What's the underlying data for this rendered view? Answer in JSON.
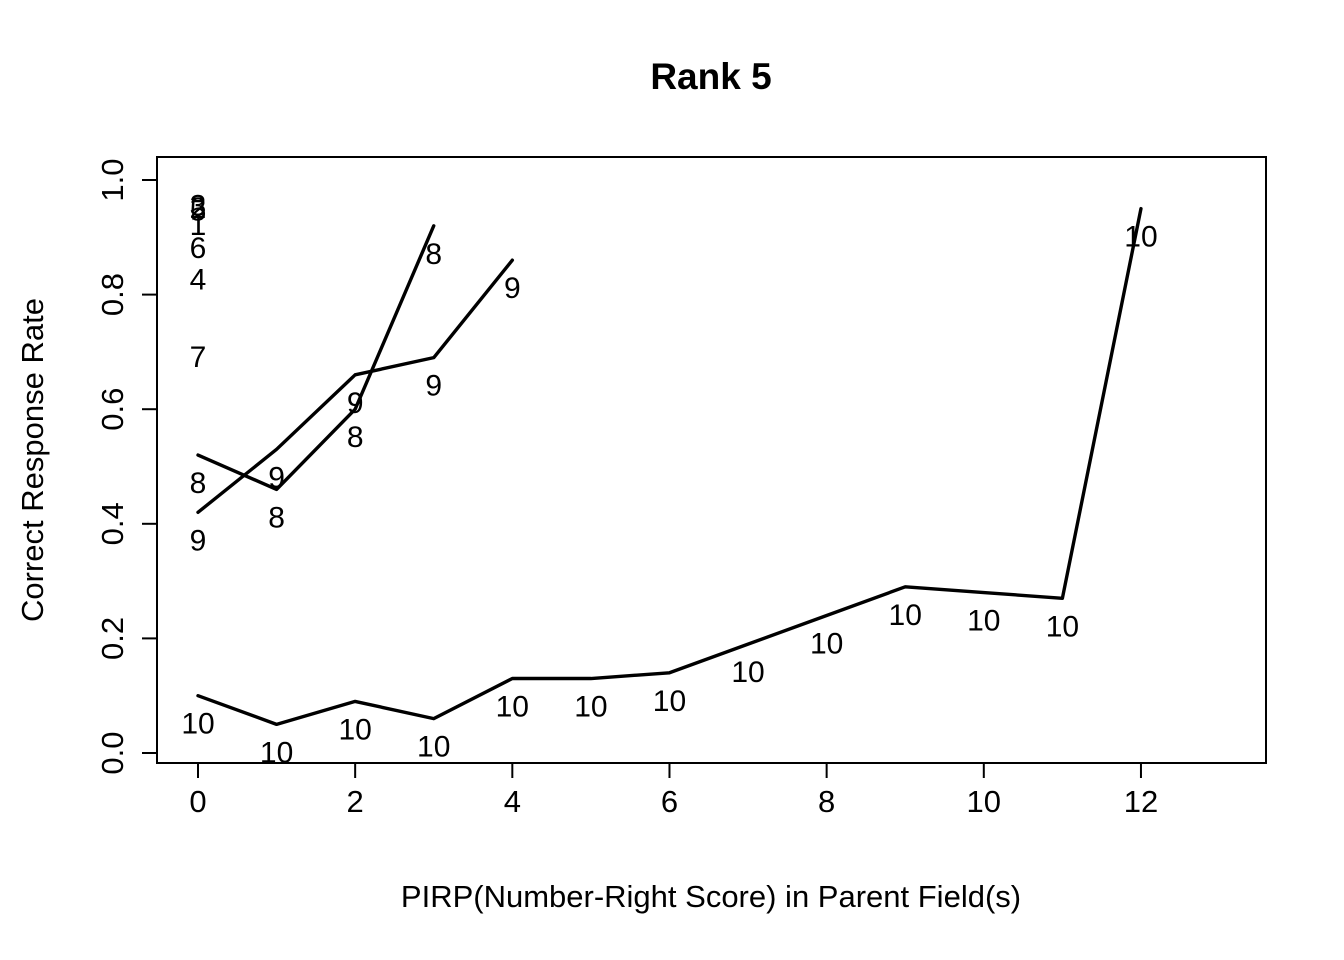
{
  "chart_data": {
    "type": "line",
    "title": "Rank 5",
    "xlabel": "PIRP(Number-Right Score) in Parent Field(s)",
    "ylabel": "Correct Response Rate",
    "xlim": [
      -0.5,
      13.6
    ],
    "ylim": [
      -0.02,
      1.06
    ],
    "x_ticks": [
      0,
      2,
      4,
      6,
      8,
      10,
      12
    ],
    "y_ticks": [
      0.0,
      0.2,
      0.4,
      0.6,
      0.8,
      1.0
    ],
    "y_tick_labels": [
      "0.0",
      "0.2",
      "0.4",
      "0.6",
      "0.8",
      "1.0"
    ],
    "grid": false,
    "legend": "none",
    "line_color": "#000000",
    "label_placement": "below-point",
    "series": [
      {
        "name": "item-8",
        "label": "8",
        "x": [
          0,
          1,
          2,
          3
        ],
        "y": [
          0.52,
          0.46,
          0.6,
          0.92
        ]
      },
      {
        "name": "item-9",
        "label": "9",
        "x": [
          0,
          1,
          2,
          3,
          4
        ],
        "y": [
          0.42,
          0.53,
          0.66,
          0.69,
          0.86
        ]
      },
      {
        "name": "item-10",
        "label": "10",
        "x": [
          0,
          1,
          2,
          3,
          4,
          5,
          6,
          7,
          8,
          9,
          10,
          11,
          12
        ],
        "y": [
          0.1,
          0.05,
          0.09,
          0.06,
          0.13,
          0.13,
          0.14,
          0.19,
          0.24,
          0.29,
          0.28,
          0.27,
          0.95
        ]
      }
    ],
    "single_points": [
      {
        "label": "3",
        "x": 0,
        "y": 1.004
      },
      {
        "label": "5",
        "x": 0,
        "y": 0.996
      },
      {
        "label": "2",
        "x": 0,
        "y": 1.0
      },
      {
        "label": "1",
        "x": 0,
        "y": 0.97
      },
      {
        "label": "6",
        "x": 0,
        "y": 0.93
      },
      {
        "label": "4",
        "x": 0,
        "y": 0.875
      },
      {
        "label": "7",
        "x": 0,
        "y": 0.74
      }
    ]
  }
}
